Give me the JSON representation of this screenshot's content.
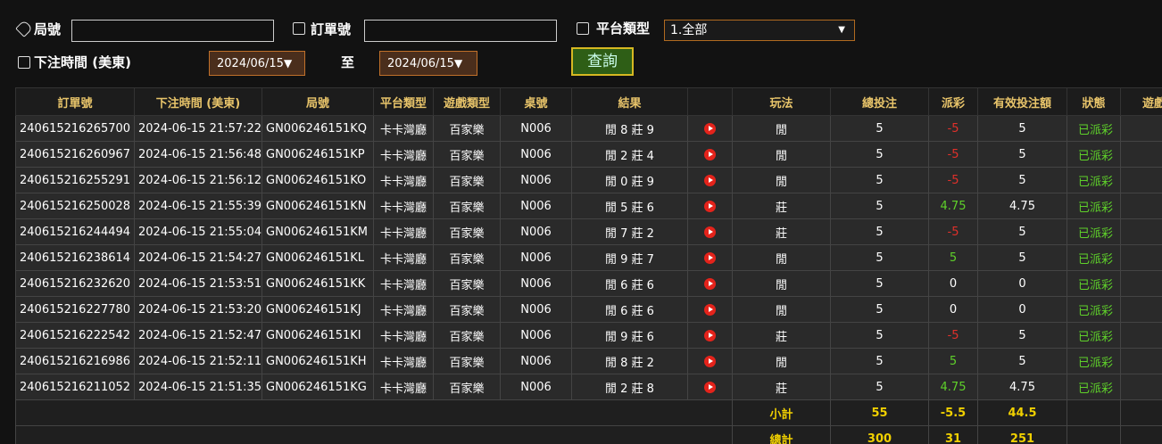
{
  "filters": {
    "round_label": "局號",
    "order_label": "訂單號",
    "platform_label": "平台類型",
    "platform_value": "1.全部",
    "time_label": "下注時間 (美東)",
    "date_from": "2024/06/15",
    "to": "至",
    "date_to": "2024/06/15",
    "search": "查詢"
  },
  "table": {
    "columns": [
      "訂單號",
      "下注時間 (美東)",
      "局號",
      "平台類型",
      "遊戲類型",
      "桌號",
      "結果",
      "玩法",
      "總投注",
      "派彩",
      "有效投注額",
      "狀態",
      "遊戲"
    ],
    "rows": [
      [
        "240615216265700",
        "2024-06-15 21:57:22",
        "GN006246151KQ",
        "卡卡灣廳",
        "百家樂",
        "N006",
        "閒 8 莊 9",
        "閒",
        "5",
        "-5",
        "5",
        "已派彩"
      ],
      [
        "240615216260967",
        "2024-06-15 21:56:48",
        "GN006246151KP",
        "卡卡灣廳",
        "百家樂",
        "N006",
        "閒 2 莊 4",
        "閒",
        "5",
        "-5",
        "5",
        "已派彩"
      ],
      [
        "240615216255291",
        "2024-06-15 21:56:12",
        "GN006246151KO",
        "卡卡灣廳",
        "百家樂",
        "N006",
        "閒 0 莊 9",
        "閒",
        "5",
        "-5",
        "5",
        "已派彩"
      ],
      [
        "240615216250028",
        "2024-06-15 21:55:39",
        "GN006246151KN",
        "卡卡灣廳",
        "百家樂",
        "N006",
        "閒 5 莊 6",
        "莊",
        "5",
        "4.75",
        "4.75",
        "已派彩"
      ],
      [
        "240615216244494",
        "2024-06-15 21:55:04",
        "GN006246151KM",
        "卡卡灣廳",
        "百家樂",
        "N006",
        "閒 7 莊 2",
        "莊",
        "5",
        "-5",
        "5",
        "已派彩"
      ],
      [
        "240615216238614",
        "2024-06-15 21:54:27",
        "GN006246151KL",
        "卡卡灣廳",
        "百家樂",
        "N006",
        "閒 9 莊 7",
        "閒",
        "5",
        "5",
        "5",
        "已派彩"
      ],
      [
        "240615216232620",
        "2024-06-15 21:53:51",
        "GN006246151KK",
        "卡卡灣廳",
        "百家樂",
        "N006",
        "閒 6 莊 6",
        "閒",
        "5",
        "0",
        "0",
        "已派彩"
      ],
      [
        "240615216227780",
        "2024-06-15 21:53:20",
        "GN006246151KJ",
        "卡卡灣廳",
        "百家樂",
        "N006",
        "閒 6 莊 6",
        "閒",
        "5",
        "0",
        "0",
        "已派彩"
      ],
      [
        "240615216222542",
        "2024-06-15 21:52:47",
        "GN006246151KI",
        "卡卡灣廳",
        "百家樂",
        "N006",
        "閒 9 莊 6",
        "莊",
        "5",
        "-5",
        "5",
        "已派彩"
      ],
      [
        "240615216216986",
        "2024-06-15 21:52:11",
        "GN006246151KH",
        "卡卡灣廳",
        "百家樂",
        "N006",
        "閒 8 莊 2",
        "閒",
        "5",
        "5",
        "5",
        "已派彩"
      ],
      [
        "240615216211052",
        "2024-06-15 21:51:35",
        "GN006246151KG",
        "卡卡灣廳",
        "百家樂",
        "N006",
        "閒 2 莊 8",
        "莊",
        "5",
        "4.75",
        "4.75",
        "已派彩"
      ]
    ],
    "subtotal": {
      "label": "小計",
      "bet": "55",
      "payout": "-5.5",
      "valid": "44.5"
    },
    "total": {
      "label": "總計",
      "bet": "300",
      "payout": "31",
      "valid": "251"
    }
  }
}
